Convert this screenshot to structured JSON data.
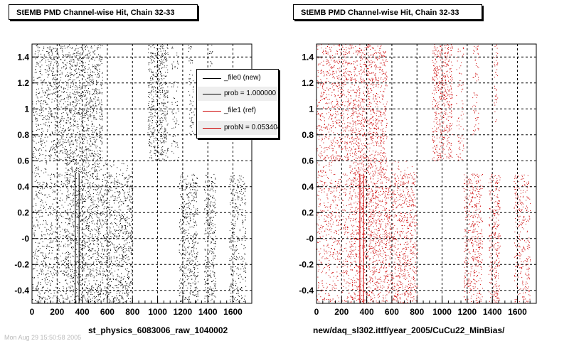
{
  "panels": [
    {
      "title": "StEMB PMD Channel-wise Hit, Chain 32-33",
      "xlabel": "st_physics_6083006_raw_1040002",
      "color": "#000000",
      "seed": 12345
    },
    {
      "title": "StEMB PMD Channel-wise Hit, Chain 32-33",
      "xlabel": "new/daq_sl302.ittf/year_2005/CuCu22_MinBias/",
      "color": "#cc0000",
      "seed": 98765
    }
  ],
  "legend": {
    "items": [
      {
        "label": "_file0 (new)",
        "color": "#000000"
      },
      {
        "label": "prob = 1.000000",
        "color": "#000000"
      },
      {
        "label": "_file1 (ref)",
        "color": "#cc0000"
      },
      {
        "label": "probN = 0.053404",
        "color": "#cc0000"
      }
    ]
  },
  "footnote": "Mon Aug 29 15:50:58 2005",
  "chart_data": [
    {
      "type": "scatter",
      "title": "StEMB PMD Channel-wise Hit, Chain 32-33",
      "xlabel": "st_physics_6083006_raw_1040002",
      "ylabel": "",
      "xlim": [
        0,
        1750
      ],
      "ylim": [
        -0.5,
        1.5
      ],
      "xticks": [
        0,
        200,
        400,
        600,
        800,
        1000,
        1200,
        1400,
        1600
      ],
      "xticklabels": [
        "0",
        "200",
        "400",
        "600",
        "800",
        "1000",
        "1200",
        "1400",
        "1600"
      ],
      "yticks": [
        -0.4,
        -0.2,
        0.0,
        0.2,
        0.4,
        0.6,
        0.8,
        1.0,
        1.2,
        1.4
      ],
      "yticklabels": [
        "-0.4",
        "-0.2",
        "-0",
        "0.2",
        "0.4",
        "0.6",
        "0.8",
        "1",
        "1.2",
        "1.4"
      ],
      "grid": true,
      "legend_position": "top-right",
      "regions": [
        {
          "x": [
            0,
            120
          ],
          "y": [
            -0.5,
            1.5
          ],
          "density": 0.55
        },
        {
          "x": [
            120,
            260
          ],
          "y": [
            -0.5,
            0.5
          ],
          "density": 0.5
        },
        {
          "x": [
            120,
            260
          ],
          "y": [
            0.6,
            1.5
          ],
          "density": 0.75
        },
        {
          "x": [
            260,
            560
          ],
          "y": [
            -0.5,
            1.5
          ],
          "density": 0.9
        },
        {
          "x": [
            560,
            800
          ],
          "y": [
            -0.5,
            0.5
          ],
          "density": 0.85
        },
        {
          "x": [
            560,
            800
          ],
          "y": [
            0.5,
            0.6
          ],
          "density": 0.2
        },
        {
          "x": [
            920,
            1080
          ],
          "y": [
            0.6,
            1.5
          ],
          "density": 0.95
        },
        {
          "x": [
            1110,
            1170
          ],
          "y": [
            0.6,
            1.5
          ],
          "density": 0.35
        },
        {
          "x": [
            1170,
            1320
          ],
          "y": [
            -0.5,
            0.5
          ],
          "density": 0.8
        },
        {
          "x": [
            1240,
            1290
          ],
          "y": [
            0.8,
            1.5
          ],
          "density": 0.45
        },
        {
          "x": [
            1370,
            1460
          ],
          "y": [
            -0.5,
            0.5
          ],
          "density": 0.85
        },
        {
          "x": [
            1410,
            1440
          ],
          "y": [
            0.9,
            1.5
          ],
          "density": 0.6
        },
        {
          "x": [
            1570,
            1700
          ],
          "y": [
            -0.5,
            0.5
          ],
          "density": 0.6
        }
      ],
      "vertical_lines": [
        {
          "x": 345,
          "y": [
            -0.5,
            0.5
          ]
        },
        {
          "x": 375,
          "y": [
            -0.5,
            0.5
          ]
        }
      ]
    },
    {
      "type": "scatter",
      "title": "StEMB PMD Channel-wise Hit, Chain 32-33",
      "xlabel": "new/daq_sl302.ittf/year_2005/CuCu22_MinBias/",
      "ylabel": "",
      "xlim": [
        0,
        1750
      ],
      "ylim": [
        -0.5,
        1.5
      ],
      "xticks": [
        0,
        200,
        400,
        600,
        800,
        1000,
        1200,
        1400,
        1600
      ],
      "xticklabels": [
        "0",
        "200",
        "400",
        "600",
        "800",
        "1000",
        "1200",
        "1400",
        "1600"
      ],
      "yticks": [
        -0.4,
        -0.2,
        0.0,
        0.2,
        0.4,
        0.6,
        0.8,
        1.0,
        1.2,
        1.4
      ],
      "yticklabels": [
        "-0.4",
        "-0.2",
        "-0",
        "0.2",
        "0.4",
        "0.6",
        "0.8",
        "1",
        "1.2",
        "1.4"
      ],
      "grid": true,
      "regions": [
        {
          "x": [
            0,
            120
          ],
          "y": [
            -0.5,
            1.5
          ],
          "density": 0.55
        },
        {
          "x": [
            120,
            260
          ],
          "y": [
            -0.5,
            0.5
          ],
          "density": 0.5
        },
        {
          "x": [
            120,
            260
          ],
          "y": [
            0.6,
            1.5
          ],
          "density": 0.75
        },
        {
          "x": [
            260,
            560
          ],
          "y": [
            -0.5,
            1.5
          ],
          "density": 0.9
        },
        {
          "x": [
            560,
            800
          ],
          "y": [
            -0.5,
            0.5
          ],
          "density": 0.85
        },
        {
          "x": [
            560,
            800
          ],
          "y": [
            0.5,
            0.6
          ],
          "density": 0.2
        },
        {
          "x": [
            920,
            1080
          ],
          "y": [
            0.6,
            1.5
          ],
          "density": 0.95
        },
        {
          "x": [
            1110,
            1170
          ],
          "y": [
            0.6,
            1.5
          ],
          "density": 0.35
        },
        {
          "x": [
            1170,
            1320
          ],
          "y": [
            -0.5,
            0.5
          ],
          "density": 0.8
        },
        {
          "x": [
            1240,
            1290
          ],
          "y": [
            0.8,
            1.5
          ],
          "density": 0.45
        },
        {
          "x": [
            1370,
            1460
          ],
          "y": [
            -0.5,
            0.5
          ],
          "density": 0.85
        },
        {
          "x": [
            1410,
            1440
          ],
          "y": [
            0.9,
            1.5
          ],
          "density": 0.6
        },
        {
          "x": [
            1570,
            1700
          ],
          "y": [
            -0.5,
            0.5
          ],
          "density": 0.6
        }
      ],
      "vertical_lines": [
        {
          "x": 345,
          "y": [
            -0.5,
            0.5
          ]
        },
        {
          "x": 375,
          "y": [
            -0.5,
            0.5
          ]
        }
      ]
    }
  ]
}
